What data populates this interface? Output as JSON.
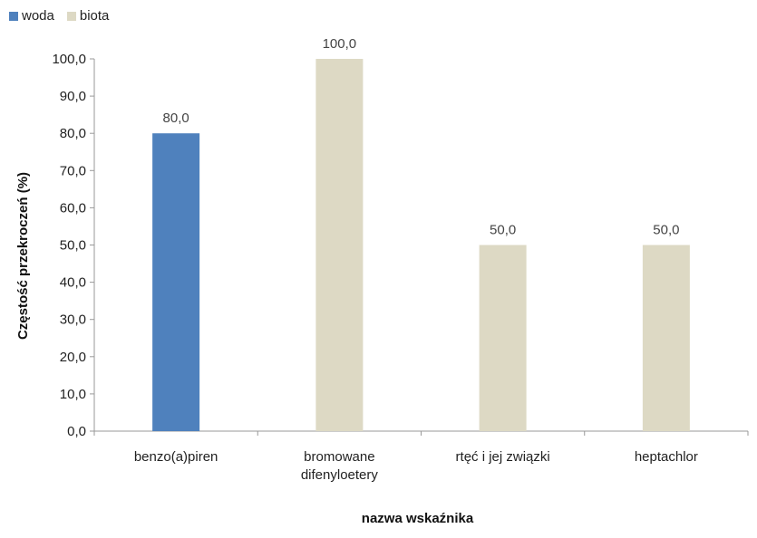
{
  "chart_data": {
    "type": "bar",
    "categories": [
      "benzo(a)piren",
      "bromowane difenyloetery",
      "rtęć i jej związki",
      "heptachlor"
    ],
    "category_lines": [
      [
        "benzo(a)piren"
      ],
      [
        "bromowane",
        "difenyloetery"
      ],
      [
        "rtęć i jej związki"
      ],
      [
        "heptachlor"
      ]
    ],
    "series": [
      {
        "name": "woda",
        "color": "#4F81BD",
        "values": [
          80.0,
          null,
          null,
          null
        ]
      },
      {
        "name": "biota",
        "color": "#DDD9C4",
        "values": [
          null,
          100.0,
          50.0,
          50.0
        ]
      }
    ],
    "data_labels": [
      "80,0",
      "100,0",
      "50,0",
      "50,0"
    ],
    "xlabel": "nazwa wskaźnika",
    "ylabel": "Częstość przekroczeń (%)",
    "ylim": [
      0,
      100
    ],
    "yticks": [
      0,
      10,
      20,
      30,
      40,
      50,
      60,
      70,
      80,
      90,
      100
    ],
    "ytick_labels": [
      "0,0",
      "10,0",
      "20,0",
      "30,0",
      "40,0",
      "50,0",
      "60,0",
      "70,0",
      "80,0",
      "90,0",
      "100,0"
    ],
    "grid": false,
    "legend_position": "top-left"
  }
}
